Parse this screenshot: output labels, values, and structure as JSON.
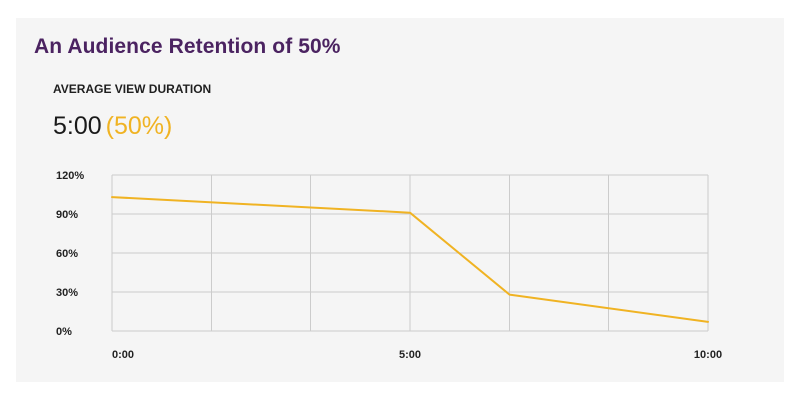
{
  "card": {
    "title": "An Audience Retention of 50%",
    "metric_label": "AVERAGE VIEW DURATION",
    "metric_value": "5:00",
    "metric_percent": "(50%)"
  },
  "colors": {
    "title": "#4b2361",
    "accent": "#f0b323",
    "grid": "#cccccc",
    "background": "#f5f5f5"
  },
  "chart_data": {
    "type": "line",
    "title": "",
    "xlabel": "",
    "ylabel": "",
    "x_unit": "minutes",
    "xlim": [
      0,
      10
    ],
    "ylim": [
      0,
      120
    ],
    "y_ticks": [
      0,
      30,
      60,
      90,
      120
    ],
    "y_tick_labels": [
      "0%",
      "30%",
      "60%",
      "90%",
      "120%"
    ],
    "x_ticks": [
      0,
      5,
      10
    ],
    "x_tick_labels": [
      "0:00",
      "5:00",
      "10:00"
    ],
    "x_gridlines": [
      0,
      1.67,
      3.33,
      5,
      6.67,
      8.33,
      10
    ],
    "grid": true,
    "legend": "none",
    "series": [
      {
        "color": "#f0b323",
        "x": [
          0,
          5,
          6.67,
          10
        ],
        "y": [
          103,
          91,
          28,
          7
        ]
      }
    ]
  }
}
